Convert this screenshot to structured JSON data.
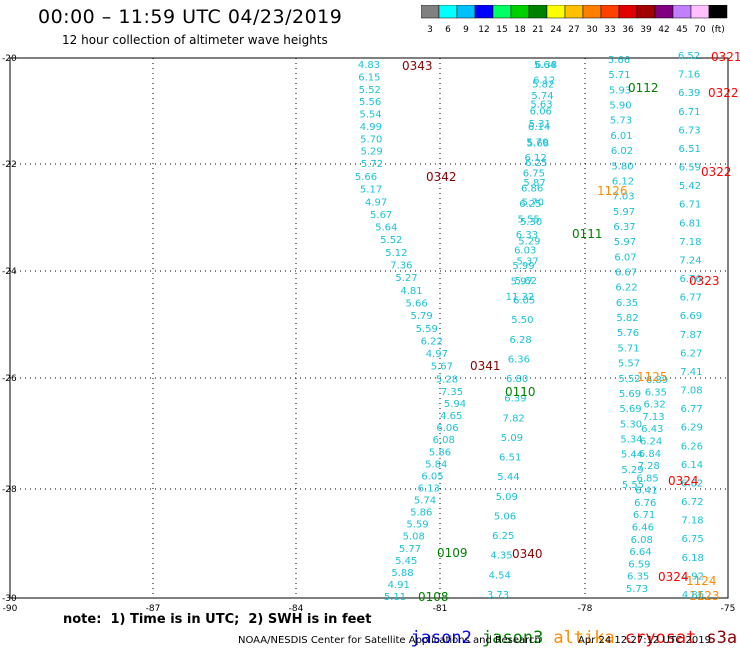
{
  "header": {
    "title": "00:00 – 11:59 UTC 04/23/2019",
    "subtitle": "12 hour collection of altimeter wave heights"
  },
  "scale": {
    "labels": [
      "3",
      "6",
      "9",
      "12",
      "15",
      "18",
      "21",
      "24",
      "27",
      "30",
      "33",
      "36",
      "39",
      "42",
      "45",
      "70",
      "(ft)"
    ],
    "colors": [
      "#808080",
      "#00ffff",
      "#00c0ff",
      "#0000ff",
      "#00ff60",
      "#00d000",
      "#008000",
      "#ffff00",
      "#ffc000",
      "#ff8000",
      "#ff4000",
      "#e00000",
      "#a00000",
      "#800080",
      "#c080ff",
      "#ffc0ff",
      "#000000"
    ]
  },
  "axes": {
    "x_ticks": [
      "-90",
      "-87",
      "-84",
      "-81",
      "-78",
      "-75"
    ],
    "y_ticks": [
      "-20",
      "-22",
      "-24",
      "-26",
      "-28",
      "-30"
    ]
  },
  "tracks": [
    {
      "label": "0343",
      "color": "#8b0000",
      "values": [
        "4.83",
        "6.15",
        "5.52",
        "5.56",
        "5.54",
        "4.99",
        "5.70",
        "5.29",
        "5.72"
      ]
    },
    {
      "label": "0342",
      "color": "#8b0000",
      "values": [
        "5.66",
        "5.17",
        "4.97",
        "5.67",
        "5.64",
        "5.52",
        "5.12",
        "7.36",
        "5.27",
        "4.81",
        "5.66",
        "5.79",
        "5.59",
        "6.22",
        "4.97",
        "5.67",
        "5.28",
        "7.35"
      ]
    },
    {
      "label": "0341",
      "color": "#8b0000",
      "values": [
        "5.64",
        "5.82",
        "5.63",
        "5.31",
        "5.68",
        "6.25",
        "5.87",
        "5.70",
        "5.30",
        "5.29",
        "5.37",
        "5.62",
        "6.05",
        "5.50",
        "6.28",
        "6.36",
        "6.80",
        "6.39",
        "7.82",
        "5.09",
        "6.51",
        "5.44",
        "5.09",
        "5.06",
        "6.25",
        "4.35",
        "4.54",
        "3.73"
      ]
    },
    {
      "label": "0340",
      "color": "#8b0000",
      "values": []
    },
    {
      "label": "0110",
      "color": "#008000",
      "values": [
        "5.94",
        "4.65",
        "6.06",
        "6.08",
        "5.86",
        "5.84",
        "6.05",
        "6.13",
        "5.74",
        "5.86",
        "5.59",
        "5.08",
        "5.77",
        "5.45",
        "5.88",
        "4.91",
        "5.11"
      ]
    },
    {
      "label": "0111",
      "color": "#008000",
      "values": [
        "6.38",
        "6.12",
        "5.74",
        "6.06",
        "6.14",
        "5.70",
        "6.12",
        "6.75",
        "6.86",
        "6.25",
        "5.55",
        "6.33",
        "6.03",
        "5.99",
        "5.97",
        "11.32"
      ]
    },
    {
      "label": "0112",
      "color": "#008000",
      "values": [
        "5.66",
        "5.71",
        "5.93",
        "5.90",
        "5.73",
        "6.01",
        "6.02",
        "5.80",
        "6.12",
        "7.03",
        "5.97",
        "6.37",
        "5.97",
        "6.07",
        "6.67",
        "6.22",
        "6.35",
        "5.82",
        "5.76",
        "5.71",
        "5.57",
        "5.52",
        "5.69",
        "5.69",
        "5.30",
        "5.34",
        "5.44",
        "5.29",
        "5.55"
      ]
    },
    {
      "label": "0109",
      "color": "#008000",
      "values": []
    },
    {
      "label": "0108",
      "color": "#008000",
      "values": []
    },
    {
      "label": "1126",
      "color": "#ff8c00",
      "values": [
        "6.89",
        "6.35",
        "6.32",
        "7.13",
        "6.43",
        "6.24",
        "6.84",
        "7.28",
        "6.85",
        "6.41",
        "6.76",
        "6.71",
        "6.46",
        "6.08",
        "6.64",
        "6.59",
        "6.35",
        "5.73"
      ]
    },
    {
      "label": "1125",
      "color": "#ff8c00",
      "values": []
    },
    {
      "label": "1124",
      "color": "#ff8c00",
      "values": []
    },
    {
      "label": "1123",
      "color": "#ff8c00",
      "values": []
    },
    {
      "label": "0321",
      "color": "#ff0000",
      "values": [
        "6.52",
        "7.16",
        "6.39",
        "6.71",
        "6.73",
        "6.51",
        "6.59",
        "5.42",
        "6.71",
        "6.81",
        "7.18",
        "7.24",
        "6.76",
        "6.77",
        "6.69",
        "7.87",
        "6.27",
        "7.41",
        "7.08",
        "6.77",
        "6.29",
        "6.26",
        "6.14",
        "6.62",
        "6.72",
        "7.18",
        "6.75",
        "6.18",
        "4.92",
        "4.86"
      ]
    },
    {
      "label": "0322",
      "color": "#ff0000",
      "values": []
    },
    {
      "label": "0322",
      "color": "#ff0000",
      "values": []
    },
    {
      "label": "0323",
      "color": "#ff0000",
      "values": []
    },
    {
      "label": "0324",
      "color": "#ff0000",
      "values": []
    },
    {
      "label": "0324",
      "color": "#ff0000",
      "values": []
    }
  ],
  "note": "note:  1) Time is in UTC;  2) SWH is in feet",
  "legend": [
    {
      "name": "jason2",
      "color": "#0000ff"
    },
    {
      "name": "jason3",
      "color": "#008000"
    },
    {
      "name": "altika",
      "color": "#ff8c00"
    },
    {
      "name": "cryosat",
      "color": "#ff0000"
    },
    {
      "name": "s3a",
      "color": "#8b0000"
    }
  ],
  "footer": "NOAA/NESDIS Center for Satellite Applications and Research",
  "stamp": "Apr 24 12:27:12 UTC 2019"
}
